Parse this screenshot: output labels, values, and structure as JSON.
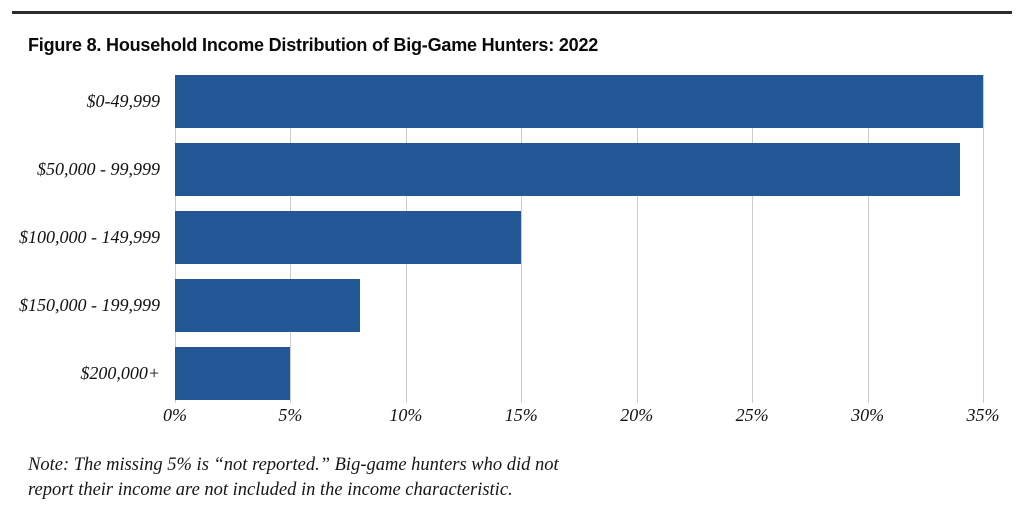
{
  "header": {
    "rule_color": "#2b2b2b"
  },
  "chart_data": {
    "type": "bar",
    "orientation": "horizontal",
    "title": "Figure 8. Household Income Distribution of Big-Game Hunters: 2022",
    "categories": [
      "$0-49,999",
      "$50,000 - 99,999",
      "$100,000 - 149,999",
      "$150,000 - 199,999",
      "$200,000+"
    ],
    "values": [
      35,
      34,
      15,
      8,
      5
    ],
    "xlabel": "",
    "ylabel": "",
    "xlim": [
      0,
      35
    ],
    "xticks": [
      0,
      5,
      10,
      15,
      20,
      25,
      30,
      35
    ],
    "xtick_labels": [
      "0%",
      "5%",
      "10%",
      "15%",
      "20%",
      "25%",
      "30%",
      "35%"
    ],
    "bar_color": "#235897",
    "gridline_color": "#cccccc",
    "grid": "vertical",
    "legend": "none"
  },
  "note": {
    "lines": [
      "Note: The missing 5% is “not reported.” Big-game hunters who did not",
      "report their income are not included in the income characteristic."
    ]
  }
}
